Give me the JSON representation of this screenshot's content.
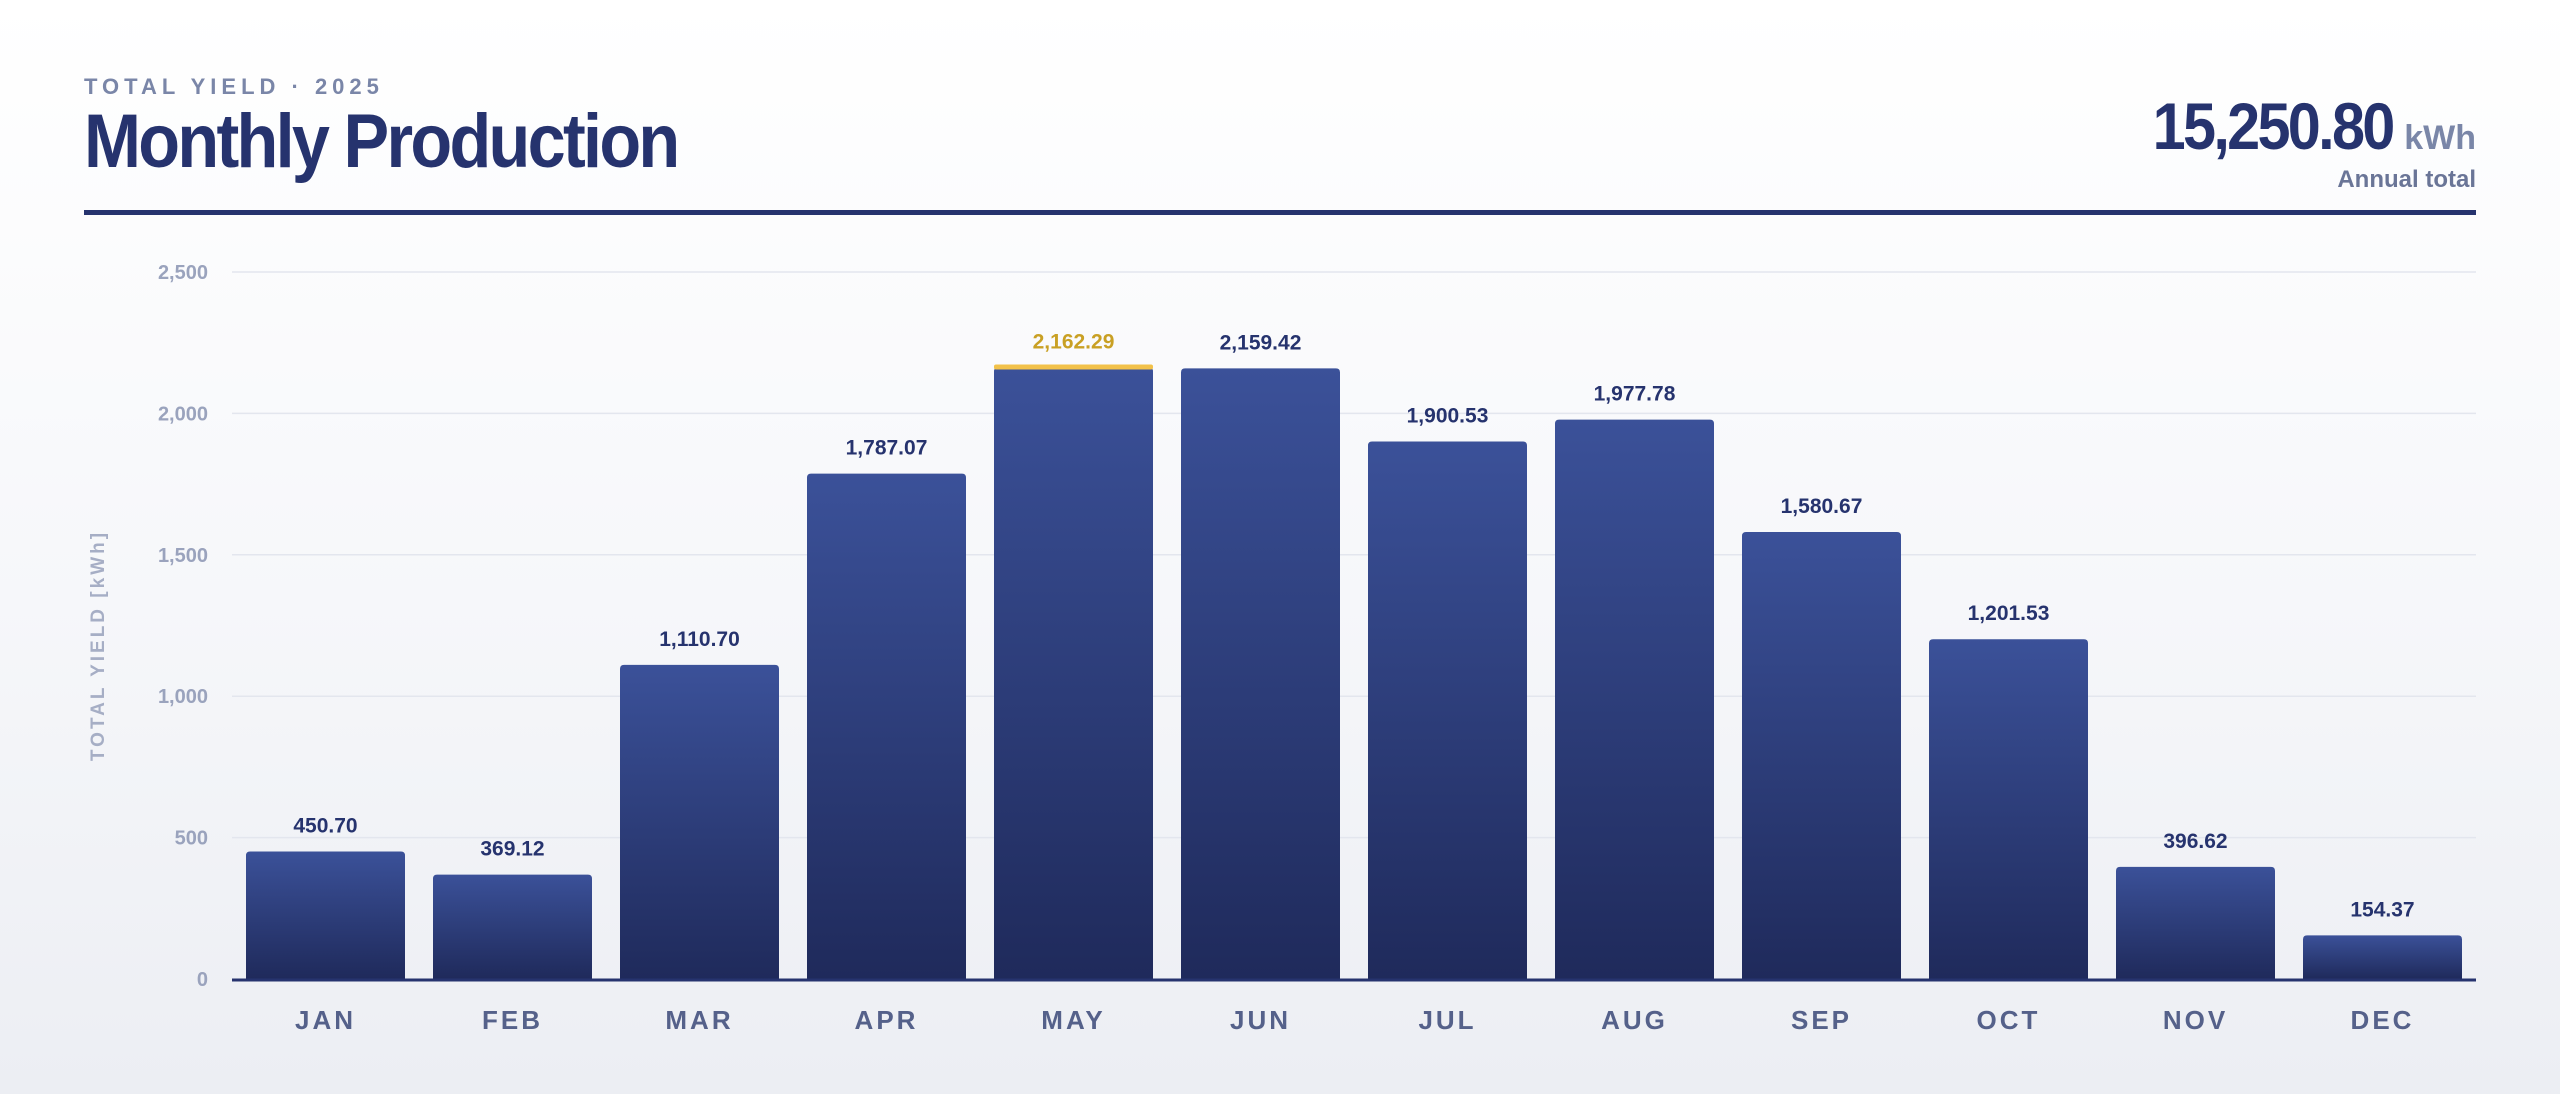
{
  "header": {
    "eyebrow": "TOTAL YIELD · 2025",
    "title": "Monthly Production",
    "total_value": "15,250.80",
    "total_unit": "kWh",
    "total_caption": "Annual total"
  },
  "colors": {
    "bar_top": "#3b5199",
    "bar_bottom": "#1f2a5b",
    "accent": "#26336e",
    "peak": "#c9a024",
    "peak_cap": "#f2c14a",
    "grid": "#e3e6ee"
  },
  "chart_data": {
    "type": "bar",
    "categories": [
      "JAN",
      "FEB",
      "MAR",
      "APR",
      "MAY",
      "JUN",
      "JUL",
      "AUG",
      "SEP",
      "OCT",
      "NOV",
      "DEC"
    ],
    "values": [
      450.7,
      369.12,
      1110.7,
      1787.07,
      2162.29,
      2159.42,
      1900.53,
      1977.78,
      1580.67,
      1201.53,
      396.62,
      154.37
    ],
    "value_labels": [
      "450.70",
      "369.12",
      "1,110.70",
      "1,787.07",
      "2,162.29",
      "2,159.42",
      "1,900.53",
      "1,977.78",
      "1,580.67",
      "1,201.53",
      "396.62",
      "154.37"
    ],
    "highlight": "MAY",
    "ylabel": "TOTAL YIELD [kWh]",
    "ylim": [
      0,
      2500
    ],
    "y_ticks": [
      0,
      500,
      1000,
      1500,
      2000,
      2500
    ],
    "y_tick_labels": [
      "0",
      "500",
      "1,000",
      "1,500",
      "2,000",
      "2,500"
    ],
    "grid": true
  }
}
